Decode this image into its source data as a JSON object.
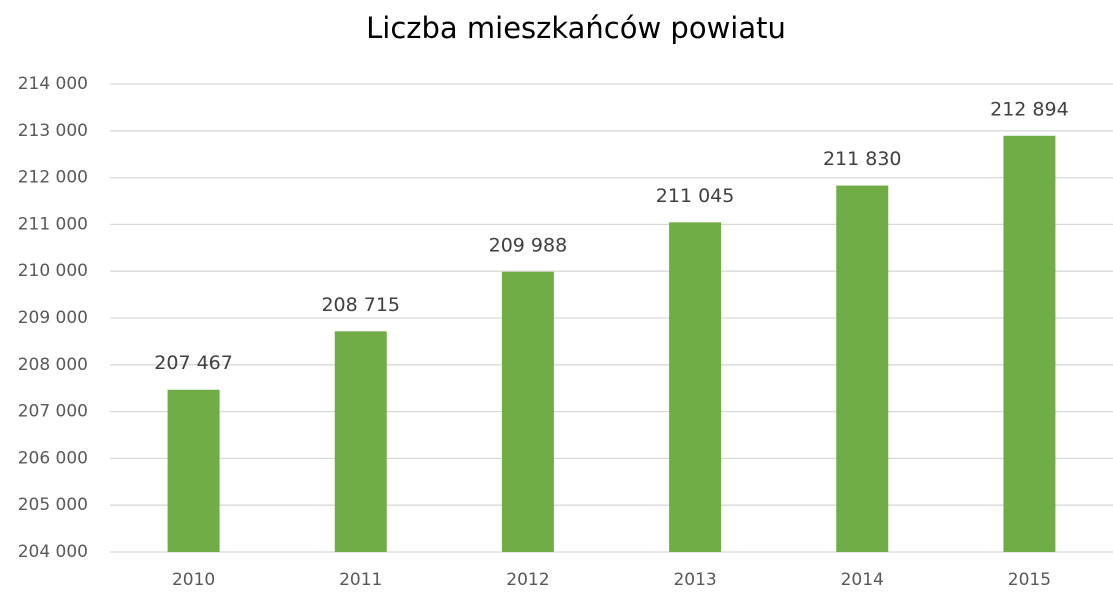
{
  "chart_data": {
    "type": "bar",
    "title": "Liczba mieszkańców powiatu",
    "categories": [
      "2010",
      "2011",
      "2012",
      "2013",
      "2014",
      "2015"
    ],
    "values": [
      207467,
      208715,
      209988,
      211045,
      211830,
      212894
    ],
    "value_labels": [
      "207 467",
      "208 715",
      "209 988",
      "211 045",
      "211 830",
      "212 894"
    ],
    "color": "#70ad47",
    "ylim": [
      204000,
      214000
    ],
    "yticks": [
      {
        "value": 204000,
        "label": "204 000"
      },
      {
        "value": 205000,
        "label": "205 000"
      },
      {
        "value": 206000,
        "label": "206 000"
      },
      {
        "value": 207000,
        "label": "207 000"
      },
      {
        "value": 208000,
        "label": "208 000"
      },
      {
        "value": 209000,
        "label": "209 000"
      },
      {
        "value": 210000,
        "label": "210 000"
      },
      {
        "value": 211000,
        "label": "211 000"
      },
      {
        "value": 212000,
        "label": "212 000"
      },
      {
        "value": 213000,
        "label": "213 000"
      },
      {
        "value": 214000,
        "label": "214 000"
      }
    ],
    "grid": true
  }
}
